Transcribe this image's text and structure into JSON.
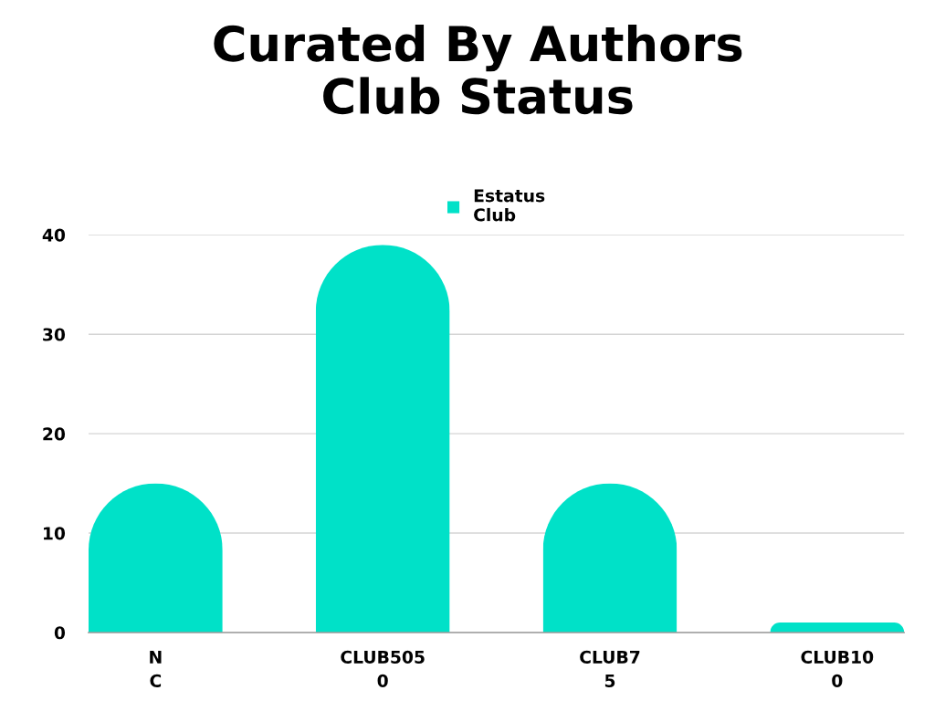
{
  "chart_data": {
    "type": "bar",
    "title": "Curated By Authors\nClub Status",
    "categories": [
      "N\nC",
      "CLUB505\n0",
      "CLUB7\n5",
      "CLUB10\n0"
    ],
    "series": [
      {
        "name": "Estatus\nClub",
        "color": "#00e1c8",
        "values": [
          15,
          39,
          15,
          1
        ]
      }
    ],
    "ylim": [
      0,
      40
    ],
    "yticks": [
      0,
      10,
      20,
      30,
      40
    ],
    "grid": "y",
    "legend": "top"
  }
}
